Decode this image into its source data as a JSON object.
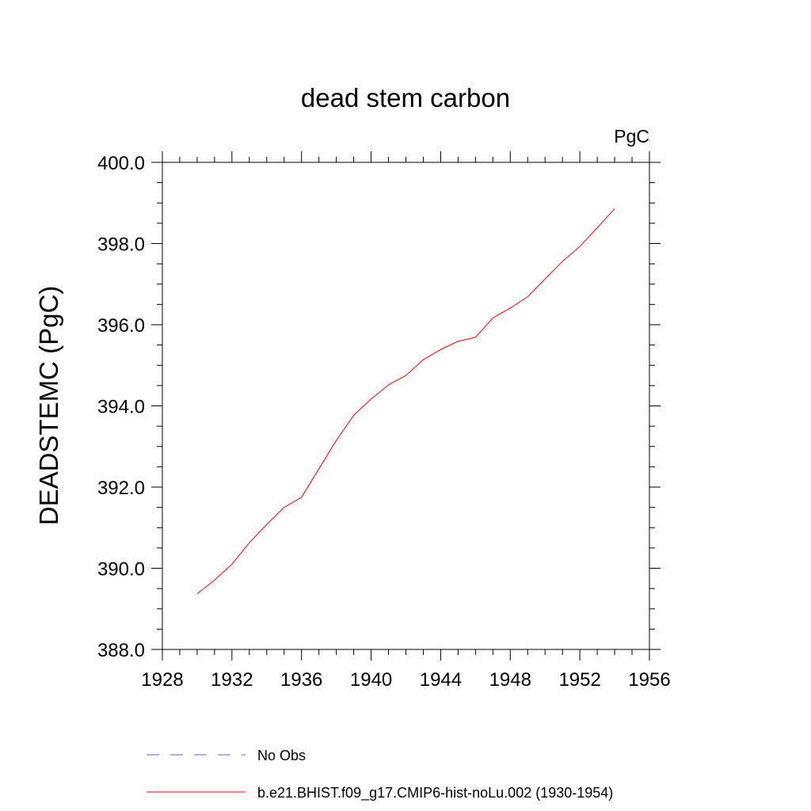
{
  "chart_data": {
    "type": "line",
    "title": "dead stem carbon",
    "units_label": "PgC",
    "xlabel": "",
    "ylabel": "DEADSTEMC  (PgC)",
    "xlim": [
      1928,
      1956
    ],
    "ylim": [
      388.0,
      400.0
    ],
    "x_ticks": [
      1928,
      1932,
      1936,
      1940,
      1944,
      1948,
      1952,
      1956
    ],
    "x_tick_labels": [
      "1928",
      "1932",
      "1936",
      "1940",
      "1944",
      "1948",
      "1952",
      "1956"
    ],
    "y_ticks": [
      388.0,
      390.0,
      392.0,
      394.0,
      396.0,
      398.0,
      400.0
    ],
    "y_tick_labels": [
      "388.0",
      "390.0",
      "392.0",
      "394.0",
      "396.0",
      "398.0",
      "400.0"
    ],
    "x_minor_step": 1,
    "y_minor_step": 0.5,
    "grid": false,
    "legend_position": "bottom",
    "series": [
      {
        "name": "b.e21.BHIST.f09_g17.CMIP6-hist-noLu.002 (1930-1954)",
        "color": "#ff0000",
        "dash": "solid",
        "x": [
          1930,
          1931,
          1932,
          1933,
          1934,
          1935,
          1936,
          1937,
          1938,
          1939,
          1940,
          1941,
          1942,
          1943,
          1944,
          1945,
          1946,
          1947,
          1948,
          1949,
          1950,
          1951,
          1952,
          1953,
          1954
        ],
        "y": [
          389.37,
          389.71,
          390.1,
          390.63,
          391.08,
          391.5,
          391.75,
          392.45,
          393.15,
          393.77,
          394.17,
          394.52,
          394.75,
          395.14,
          395.39,
          395.59,
          395.69,
          396.17,
          396.41,
          396.69,
          397.13,
          397.56,
          397.93,
          398.39,
          398.86
        ]
      }
    ],
    "legend": [
      {
        "label": "No Obs",
        "color": "#5f5fbf",
        "dash": "dashed"
      },
      {
        "label": "b.e21.BHIST.f09_g17.CMIP6-hist-noLu.002 (1930-1954)",
        "color": "#ff0000",
        "dash": "solid"
      }
    ]
  }
}
